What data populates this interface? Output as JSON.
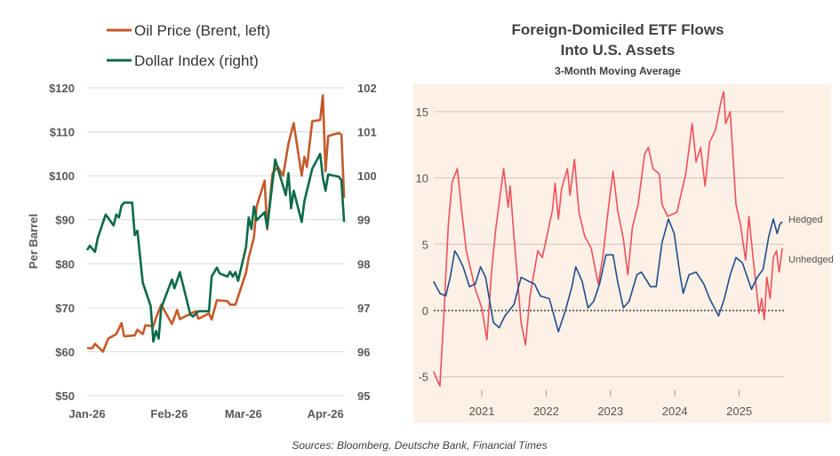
{
  "source_note": "Sources: Bloomberg, Deutsche Bank, Financial Times",
  "chart_data": [
    {
      "type": "line",
      "title": "",
      "ylabel": "Per Barrel",
      "y2label": "",
      "ylim": [
        50,
        120
      ],
      "y2lim": [
        95,
        102
      ],
      "yticks": [
        "$50",
        "$60",
        "$70",
        "$80",
        "$90",
        "$100",
        "$110",
        "$120"
      ],
      "y2ticks": [
        "95",
        "96",
        "97",
        "98",
        "99",
        "100",
        "101",
        "102"
      ],
      "xticks": [
        {
          "label": "Jan-26",
          "date": "2026-01-01"
        },
        {
          "label": "Feb-26",
          "date": "2026-02-01"
        },
        {
          "label": "Mar-26",
          "date": "2026-03-01"
        },
        {
          "label": "Apr-26",
          "date": "2026-04-01"
        }
      ],
      "grid": true,
      "legend": "top-left",
      "series": [
        {
          "name": "Oil Price (Brent, left)",
          "axis": "left",
          "color": "#c55a2a",
          "points": [
            [
              "2026-01-01",
              60.8
            ],
            [
              "2026-01-03",
              60.8
            ],
            [
              "2026-01-04",
              61.8
            ],
            [
              "2026-01-07",
              60
            ],
            [
              "2026-01-09",
              63
            ],
            [
              "2026-01-12",
              64
            ],
            [
              "2026-01-14",
              66.5
            ],
            [
              "2026-01-15",
              63.5
            ],
            [
              "2026-01-19",
              63.7
            ],
            [
              "2026-01-20",
              65
            ],
            [
              "2026-01-22",
              64
            ],
            [
              "2026-01-23",
              66
            ],
            [
              "2026-01-26",
              65.8
            ],
            [
              "2026-01-27",
              67.7
            ],
            [
              "2026-01-29",
              70.7
            ],
            [
              "2026-02-02",
              66.3
            ],
            [
              "2026-02-04",
              69.5
            ],
            [
              "2026-02-05",
              67.4
            ],
            [
              "2026-02-11",
              69.2
            ],
            [
              "2026-02-12",
              67.5
            ],
            [
              "2026-02-16",
              68.7
            ],
            [
              "2026-02-17",
              67.3
            ],
            [
              "2026-02-19",
              71.7
            ],
            [
              "2026-02-23",
              71.5
            ],
            [
              "2026-02-24",
              70.7
            ],
            [
              "2026-02-26",
              70.7
            ],
            [
              "2026-03-02",
              78
            ],
            [
              "2026-03-03",
              81.4
            ],
            [
              "2026-03-05",
              86
            ],
            [
              "2026-03-06",
              93
            ],
            [
              "2026-03-09",
              98.9
            ],
            [
              "2026-03-10",
              87.8
            ],
            [
              "2026-03-12",
              100.6
            ],
            [
              "2026-03-14",
              102
            ],
            [
              "2026-03-16",
              100
            ],
            [
              "2026-03-18",
              107.3
            ],
            [
              "2026-03-20",
              112
            ],
            [
              "2026-03-23",
              100
            ],
            [
              "2026-03-24",
              104.3
            ],
            [
              "2026-03-25",
              102
            ],
            [
              "2026-03-27",
              112.4
            ],
            [
              "2026-03-30",
              112.7
            ],
            [
              "2026-03-31",
              118.3
            ],
            [
              "2026-04-01",
              101
            ],
            [
              "2026-04-02",
              109
            ],
            [
              "2026-04-04",
              109.4
            ],
            [
              "2026-04-06",
              109.7
            ],
            [
              "2026-04-07",
              109.4
            ],
            [
              "2026-04-08",
              95
            ]
          ]
        },
        {
          "name": "Dollar Index (right)",
          "axis": "right",
          "color": "#0b6b47",
          "points": [
            [
              "2026-01-01",
              98.31
            ],
            [
              "2026-01-02",
              98.41
            ],
            [
              "2026-01-04",
              98.27
            ],
            [
              "2026-01-05",
              98.58
            ],
            [
              "2026-01-08",
              99.12
            ],
            [
              "2026-01-11",
              98.87
            ],
            [
              "2026-01-12",
              99.12
            ],
            [
              "2026-01-13",
              99.05
            ],
            [
              "2026-01-14",
              99.32
            ],
            [
              "2026-01-15",
              99.39
            ],
            [
              "2026-01-18",
              99.39
            ],
            [
              "2026-01-19",
              98.65
            ],
            [
              "2026-01-20",
              98.75
            ],
            [
              "2026-01-22",
              97.57
            ],
            [
              "2026-01-25",
              97.04
            ],
            [
              "2026-01-26",
              96.23
            ],
            [
              "2026-01-27",
              96.47
            ],
            [
              "2026-01-28",
              96.3
            ],
            [
              "2026-01-29",
              97.0
            ],
            [
              "2026-02-02",
              97.64
            ],
            [
              "2026-02-03",
              97.44
            ],
            [
              "2026-02-05",
              97.81
            ],
            [
              "2026-02-09",
              96.84
            ],
            [
              "2026-02-10",
              96.8
            ],
            [
              "2026-02-12",
              96.92
            ],
            [
              "2026-02-16",
              96.92
            ],
            [
              "2026-02-17",
              97.71
            ],
            [
              "2026-02-19",
              97.91
            ],
            [
              "2026-02-20",
              97.78
            ],
            [
              "2026-02-23",
              97.71
            ],
            [
              "2026-02-24",
              97.82
            ],
            [
              "2026-02-25",
              97.71
            ],
            [
              "2026-02-26",
              97.81
            ],
            [
              "2026-02-27",
              97.61
            ],
            [
              "2026-03-02",
              98.38
            ],
            [
              "2026-03-03",
              99.05
            ],
            [
              "2026-03-04",
              98.79
            ],
            [
              "2026-03-05",
              99.3
            ],
            [
              "2026-03-06",
              98.99
            ],
            [
              "2026-03-09",
              99.17
            ],
            [
              "2026-03-10",
              98.82
            ],
            [
              "2026-03-13",
              100.37
            ],
            [
              "2026-03-17",
              99.56
            ],
            [
              "2026-03-18",
              100.06
            ],
            [
              "2026-03-19",
              99.26
            ],
            [
              "2026-03-20",
              99.66
            ],
            [
              "2026-03-23",
              98.95
            ],
            [
              "2026-03-24",
              99.42
            ],
            [
              "2026-03-27",
              100.16
            ],
            [
              "2026-03-30",
              100.5
            ],
            [
              "2026-03-31",
              99.96
            ],
            [
              "2026-04-01",
              99.66
            ],
            [
              "2026-04-02",
              100.03
            ],
            [
              "2026-04-06",
              99.98
            ],
            [
              "2026-04-07",
              99.9
            ],
            [
              "2026-04-08",
              98.95
            ]
          ]
        }
      ]
    },
    {
      "type": "line",
      "title": "Foreign-Domiciled ETF Flows",
      "title_line2": "Into U.S. Assets",
      "subtitle": "3-Month Moving Average",
      "ylim": [
        -6,
        17
      ],
      "yticks": [
        "-5",
        "0",
        "5",
        "10",
        "15"
      ],
      "xticks": [
        "2021",
        "2022",
        "2023",
        "2024",
        "2025"
      ],
      "grid": true,
      "background": "#fdf0e6",
      "zero_line": "dotted",
      "legend": "right end labels",
      "series": [
        {
          "name": "Hedged",
          "color": "#1f4e8c",
          "points": [
            [
              2020.25,
              2.2
            ],
            [
              2020.35,
              1.3
            ],
            [
              2020.44,
              1.1
            ],
            [
              2020.51,
              2.5
            ],
            [
              2020.58,
              4.5
            ],
            [
              2020.62,
              4.2
            ],
            [
              2020.71,
              3.3
            ],
            [
              2020.81,
              1.8
            ],
            [
              2020.9,
              2.0
            ],
            [
              2020.98,
              3.3
            ],
            [
              2021.06,
              2.5
            ],
            [
              2021.18,
              -0.9
            ],
            [
              2021.27,
              -1.3
            ],
            [
              2021.36,
              -0.4
            ],
            [
              2021.5,
              0.45
            ],
            [
              2021.61,
              2.5
            ],
            [
              2021.73,
              2.2
            ],
            [
              2021.82,
              2.0
            ],
            [
              2021.91,
              1.1
            ],
            [
              2022.05,
              0.9
            ],
            [
              2022.19,
              -1.6
            ],
            [
              2022.3,
              0
            ],
            [
              2022.4,
              1.8
            ],
            [
              2022.46,
              3.3
            ],
            [
              2022.56,
              2.2
            ],
            [
              2022.65,
              0.2
            ],
            [
              2022.74,
              0.7
            ],
            [
              2022.83,
              2.0
            ],
            [
              2022.93,
              4.2
            ],
            [
              2023.04,
              4.2
            ],
            [
              2023.11,
              2.2
            ],
            [
              2023.2,
              0.2
            ],
            [
              2023.29,
              0.7
            ],
            [
              2023.41,
              2.7
            ],
            [
              2023.48,
              2.9
            ],
            [
              2023.62,
              1.8
            ],
            [
              2023.71,
              1.8
            ],
            [
              2023.8,
              5.1
            ],
            [
              2023.9,
              6.9
            ],
            [
              2023.99,
              5.8
            ],
            [
              2024.08,
              2.7
            ],
            [
              2024.13,
              1.3
            ],
            [
              2024.22,
              2.7
            ],
            [
              2024.33,
              2.9
            ],
            [
              2024.45,
              2.0
            ],
            [
              2024.54,
              0.9
            ],
            [
              2024.68,
              -0.4
            ],
            [
              2024.77,
              0.9
            ],
            [
              2024.86,
              2.7
            ],
            [
              2024.95,
              4.0
            ],
            [
              2025.05,
              3.6
            ],
            [
              2025.1,
              2.9
            ],
            [
              2025.19,
              1.6
            ],
            [
              2025.28,
              2.5
            ],
            [
              2025.37,
              3.1
            ],
            [
              2025.46,
              5.6
            ],
            [
              2025.53,
              6.9
            ],
            [
              2025.59,
              5.8
            ],
            [
              2025.63,
              6.5
            ],
            [
              2025.67,
              6.7
            ]
          ]
        },
        {
          "name": "Unhedged",
          "color": "#f0505a",
          "points": [
            [
              2020.25,
              -4.6
            ],
            [
              2020.35,
              -5.7
            ],
            [
              2020.41,
              -0.4
            ],
            [
              2020.48,
              6.5
            ],
            [
              2020.54,
              9.7
            ],
            [
              2020.62,
              10.7
            ],
            [
              2020.69,
              7.4
            ],
            [
              2020.76,
              4.5
            ],
            [
              2020.9,
              1.6
            ],
            [
              2021.0,
              0.2
            ],
            [
              2021.08,
              -2.2
            ],
            [
              2021.15,
              2.9
            ],
            [
              2021.22,
              6.25
            ],
            [
              2021.34,
              10.7
            ],
            [
              2021.41,
              7.8
            ],
            [
              2021.44,
              9.4
            ],
            [
              2021.5,
              5.6
            ],
            [
              2021.61,
              -0.9
            ],
            [
              2021.68,
              -2.6
            ],
            [
              2021.75,
              1.1
            ],
            [
              2021.87,
              4.5
            ],
            [
              2021.94,
              4.0
            ],
            [
              2022.1,
              7.6
            ],
            [
              2022.14,
              9.6
            ],
            [
              2022.19,
              6.9
            ],
            [
              2022.24,
              9.2
            ],
            [
              2022.33,
              10.7
            ],
            [
              2022.37,
              8.7
            ],
            [
              2022.44,
              11.4
            ],
            [
              2022.51,
              7.4
            ],
            [
              2022.6,
              5.6
            ],
            [
              2022.7,
              4.7
            ],
            [
              2022.81,
              2.0
            ],
            [
              2022.88,
              4.0
            ],
            [
              2022.97,
              7.8
            ],
            [
              2023.04,
              10.5
            ],
            [
              2023.11,
              7.6
            ],
            [
              2023.2,
              5.4
            ],
            [
              2023.27,
              2.7
            ],
            [
              2023.34,
              6.25
            ],
            [
              2023.43,
              8.0
            ],
            [
              2023.53,
              11.8
            ],
            [
              2023.59,
              12.3
            ],
            [
              2023.66,
              10.7
            ],
            [
              2023.76,
              10.3
            ],
            [
              2023.8,
              8.0
            ],
            [
              2023.89,
              7.1
            ],
            [
              2024.03,
              7.4
            ],
            [
              2024.17,
              10.3
            ],
            [
              2024.27,
              14.1
            ],
            [
              2024.33,
              11.2
            ],
            [
              2024.4,
              12.3
            ],
            [
              2024.47,
              9.4
            ],
            [
              2024.54,
              12.7
            ],
            [
              2024.63,
              13.6
            ],
            [
              2024.72,
              15.8
            ],
            [
              2024.76,
              16.5
            ],
            [
              2024.79,
              14.1
            ],
            [
              2024.86,
              15.0
            ],
            [
              2024.95,
              8.0
            ],
            [
              2025.02,
              6.5
            ],
            [
              2025.1,
              3.8
            ],
            [
              2025.15,
              7.1
            ],
            [
              2025.22,
              3.8
            ],
            [
              2025.31,
              -0.2
            ],
            [
              2025.35,
              0.9
            ],
            [
              2025.39,
              -0.7
            ],
            [
              2025.43,
              2.5
            ],
            [
              2025.48,
              0.9
            ],
            [
              2025.53,
              4.0
            ],
            [
              2025.58,
              4.5
            ],
            [
              2025.62,
              2.9
            ],
            [
              2025.67,
              4.7
            ]
          ]
        }
      ]
    }
  ]
}
